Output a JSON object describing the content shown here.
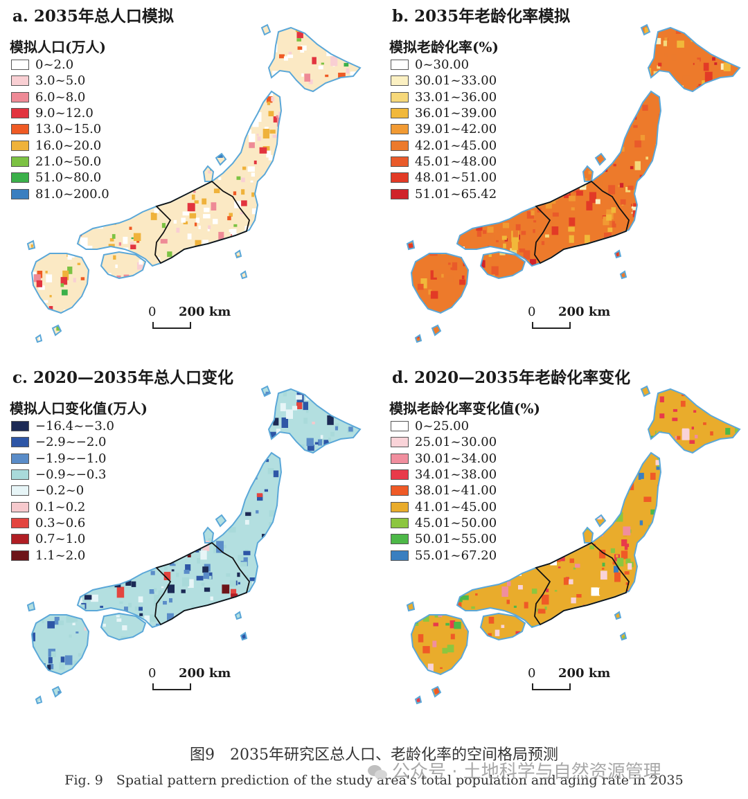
{
  "panels": [
    {
      "id": "a",
      "title": "a. 2035年总人口模拟",
      "legend_title": "模拟人口(万人)",
      "legend": [
        {
          "label": "0~2.0",
          "color": "#ffffff"
        },
        {
          "label": "3.0~5.0",
          "color": "#f9cfd3"
        },
        {
          "label": "6.0~8.0",
          "color": "#ee8a96"
        },
        {
          "label": "9.0~12.0",
          "color": "#e2343f"
        },
        {
          "label": "13.0~15.0",
          "color": "#ef5a24"
        },
        {
          "label": "16.0~20.0",
          "color": "#efb23b"
        },
        {
          "label": "21.0~50.0",
          "color": "#7cc243"
        },
        {
          "label": "51.0~80.0",
          "color": "#3bb04a"
        },
        {
          "label": "81.0~200.0",
          "color": "#3a7fc0"
        }
      ],
      "map_fill": "#fbe9c4",
      "map_accent": "#ef8a2f"
    },
    {
      "id": "b",
      "title": "b. 2035年老龄化率模拟",
      "legend_title": "模拟老龄化率(%)",
      "legend": [
        {
          "label": "0~30.00",
          "color": "#ffffff"
        },
        {
          "label": "30.01~33.00",
          "color": "#fbf0c2"
        },
        {
          "label": "33.01~36.00",
          "color": "#f6d87a"
        },
        {
          "label": "36.01~39.00",
          "color": "#f1b83a"
        },
        {
          "label": "39.01~42.00",
          "color": "#f19a33"
        },
        {
          "label": "42.01~45.00",
          "color": "#ec7a2c"
        },
        {
          "label": "45.01~48.00",
          "color": "#e95a2a"
        },
        {
          "label": "48.01~51.00",
          "color": "#e23a26"
        },
        {
          "label": "51.01~65.42",
          "color": "#d0232a"
        }
      ],
      "map_fill": "#ed7a2b",
      "map_accent": "#d83a26"
    },
    {
      "id": "c",
      "title": "c. 2020—2035年总人口变化",
      "legend_title": "模拟人口变化值(万人)",
      "legend": [
        {
          "label": "−16.4~−3.0",
          "color": "#1c2a55"
        },
        {
          "label": "−2.9~−2.0",
          "color": "#2e56a6"
        },
        {
          "label": "−1.9~−1.0",
          "color": "#5a8cc8"
        },
        {
          "label": "−0.9~−0.3",
          "color": "#a9dada"
        },
        {
          "label": "−0.2~0",
          "color": "#e7f5f7"
        },
        {
          "label": "0.1~0.2",
          "color": "#f6c9cd"
        },
        {
          "label": "0.3~0.6",
          "color": "#e3453f"
        },
        {
          "label": "0.7~1.0",
          "color": "#b01e24"
        },
        {
          "label": "1.1~2.0",
          "color": "#6d1418"
        }
      ],
      "map_fill": "#b3dfe0",
      "map_accent": "#2e56a6"
    },
    {
      "id": "d",
      "title": "d. 2020—2035年老龄化率变化",
      "legend_title": "模拟老龄化率变化值(%)",
      "legend": [
        {
          "label": "0~25.00",
          "color": "#ffffff"
        },
        {
          "label": "25.01~30.00",
          "color": "#f9d3d8"
        },
        {
          "label": "30.01~34.00",
          "color": "#f08e9e"
        },
        {
          "label": "34.01~38.00",
          "color": "#e83a4a"
        },
        {
          "label": "38.01~41.00",
          "color": "#ef5a26"
        },
        {
          "label": "41.01~45.00",
          "color": "#e9ac2c"
        },
        {
          "label": "45.01~50.00",
          "color": "#8cc63f"
        },
        {
          "label": "50.01~55.00",
          "color": "#4db848"
        },
        {
          "label": "55.01~67.20",
          "color": "#3a7fc0"
        }
      ],
      "map_fill": "#e9ac2c",
      "map_accent": "#8cc63f"
    }
  ],
  "scale_bar": {
    "zero": "0",
    "length": "200 km"
  },
  "outline_color": "#5aa7d8",
  "caption_cn": "图9　2035年研究区总人口、老龄化率的空间格局预测",
  "caption_en": "Fig. 9　Spatial pattern prediction of the study area's total population and aging rate in 2035",
  "watermark": "公众号 · 土地科学与自然资源管理"
}
